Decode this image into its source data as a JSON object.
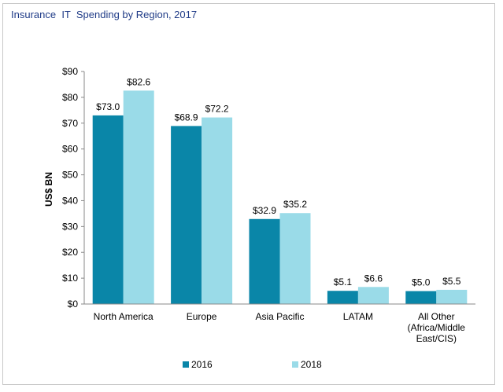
{
  "chart_data": {
    "type": "bar",
    "title": "Insurance  IT  Spending by Region, 2017",
    "xlabel": "",
    "ylabel": "US$ BN",
    "ylim": [
      0,
      90
    ],
    "yticks": [
      0,
      10,
      20,
      30,
      40,
      50,
      60,
      70,
      80,
      90
    ],
    "ytick_labels": [
      "$0",
      "$10",
      "$20",
      "$30",
      "$40",
      "$50",
      "$60",
      "$70",
      "$80",
      "$90"
    ],
    "categories": [
      [
        "North America"
      ],
      [
        "Europe"
      ],
      [
        "Asia Pacific"
      ],
      [
        "LATAM"
      ],
      [
        "All Other",
        "(Africa/Middle",
        "East/CIS)"
      ]
    ],
    "series": [
      {
        "name": "2016",
        "color": "#0a86a8",
        "values": [
          73.0,
          68.9,
          32.9,
          5.1,
          5.0
        ],
        "labels": [
          "$73.0",
          "$68.9",
          "$32.9",
          "$5.1",
          "$5.0"
        ]
      },
      {
        "name": "2018",
        "color": "#9adbe8",
        "values": [
          82.6,
          72.2,
          35.2,
          6.6,
          5.5
        ],
        "labels": [
          "$82.6",
          "$72.2",
          "$35.2",
          "$6.6",
          "$5.5"
        ]
      }
    ],
    "legend_position": "bottom",
    "grid": false
  }
}
